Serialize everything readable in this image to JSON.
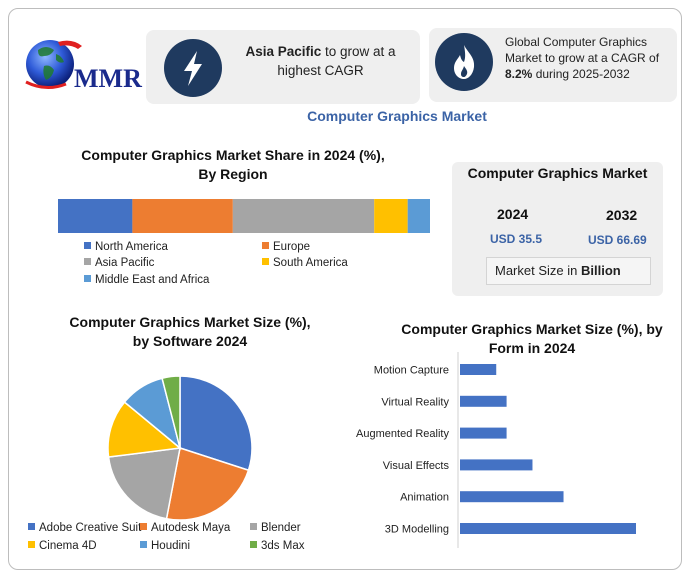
{
  "brand": {
    "logo_text": "MMR"
  },
  "highlights": {
    "region_prefix": "Asia Pacific",
    "region_suffix": " to grow at a highest CAGR",
    "cagr_line1": "Global Computer Graphics Market to grow at a CAGR of ",
    "cagr_value": "8.2%",
    "cagr_line2": " during 2025-2032",
    "icon_left": "lightning-icon",
    "icon_right": "flame-icon"
  },
  "main_title": "Computer Graphics Market",
  "stats": {
    "title": "Computer Graphics Market",
    "year1": "2024",
    "value1": "USD 35.5",
    "year2": "2032",
    "value2": "USD 66.69",
    "unit_prefix": "Market Size in ",
    "unit_bold": "Billion"
  },
  "chart_data": [
    {
      "type": "bar",
      "stacked": true,
      "orientation": "horizontal",
      "title_line1": "Computer Graphics Market Share in 2024 (%),",
      "title_line2": "By Region",
      "series": [
        {
          "name": "North America",
          "value": 20,
          "color": "#4472c4"
        },
        {
          "name": "Europe",
          "value": 27,
          "color": "#ed7d31"
        },
        {
          "name": "Asia Pacific",
          "value": 38,
          "color": "#a5a5a5"
        },
        {
          "name": "South America",
          "value": 9,
          "color": "#ffc000"
        },
        {
          "name": "Middle East and Africa",
          "value": 6,
          "color": "#5b9bd5"
        }
      ],
      "legend_position": "bottom"
    },
    {
      "type": "pie",
      "title_line1": "Computer Graphics Market  Size (%),",
      "title_line2": "by Software 2024",
      "slices": [
        {
          "name": "Adobe Creative Suit",
          "value": 30,
          "color": "#4472c4"
        },
        {
          "name": "Autodesk Maya",
          "value": 23,
          "color": "#ed7d31"
        },
        {
          "name": "Blender",
          "value": 20,
          "color": "#a5a5a5"
        },
        {
          "name": "Cinema 4D",
          "value": 13,
          "color": "#ffc000"
        },
        {
          "name": "Houdini",
          "value": 10,
          "color": "#5b9bd5"
        },
        {
          "name": "3ds Max",
          "value": 4,
          "color": "#70ad47"
        }
      ],
      "legend_position": "bottom"
    },
    {
      "type": "bar",
      "orientation": "horizontal",
      "title_line1": "Computer Graphics Market  Size (%), by",
      "title_line2": "Form in 2024",
      "categories": [
        "Motion Capture",
        "Virtual Reality",
        "Augmented Reality",
        "Visual Effects",
        "Animation",
        "3D Modelling"
      ],
      "values": [
        7,
        9,
        9,
        14,
        20,
        34
      ],
      "xlim": [
        0,
        34
      ],
      "color": "#4472c4",
      "grid": false
    }
  ]
}
